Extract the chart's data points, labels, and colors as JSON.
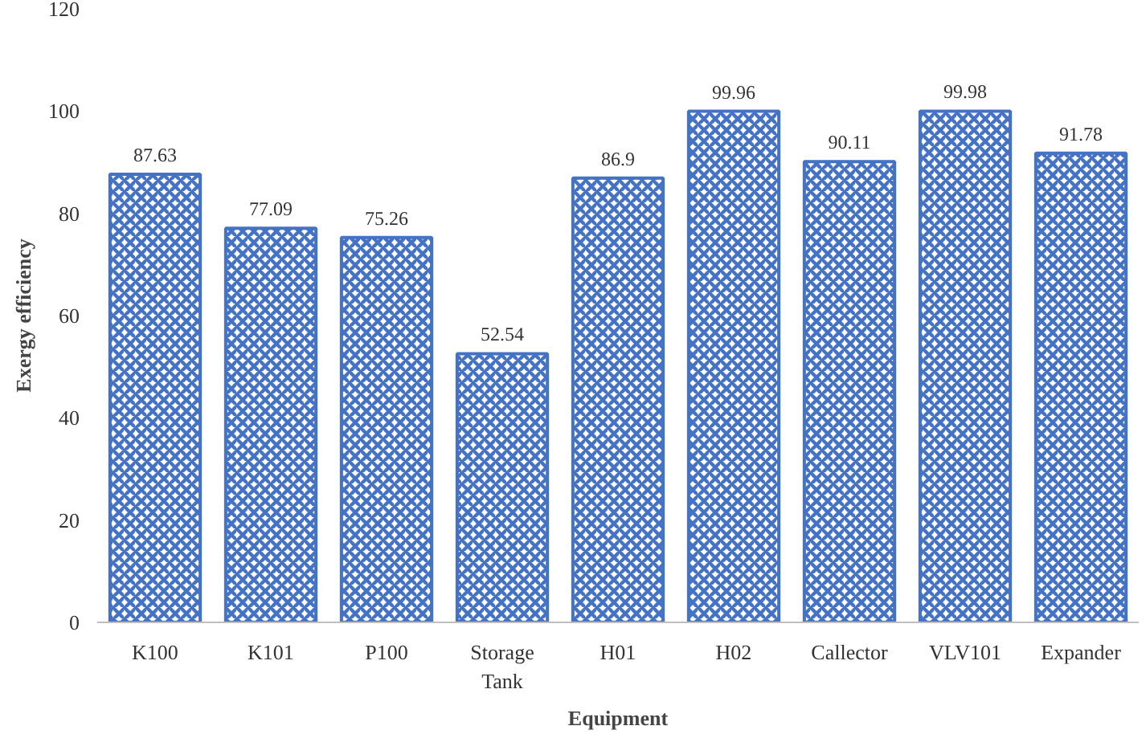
{
  "chart_data": {
    "type": "bar",
    "xlabel": "Equipment",
    "ylabel": "Exergy efficiency",
    "categories": [
      "K100",
      "K101",
      "P100",
      "Storage Tank",
      "H01",
      "H02",
      "Callector",
      "VLV101",
      "Expander"
    ],
    "values": [
      87.63,
      77.09,
      75.26,
      52.54,
      86.9,
      99.96,
      90.11,
      99.98,
      91.78
    ],
    "color": "#4472c4",
    "ylim": [
      0,
      120
    ],
    "yticks": [
      0,
      20,
      40,
      60,
      80,
      100,
      120
    ],
    "data_labels": true
  }
}
